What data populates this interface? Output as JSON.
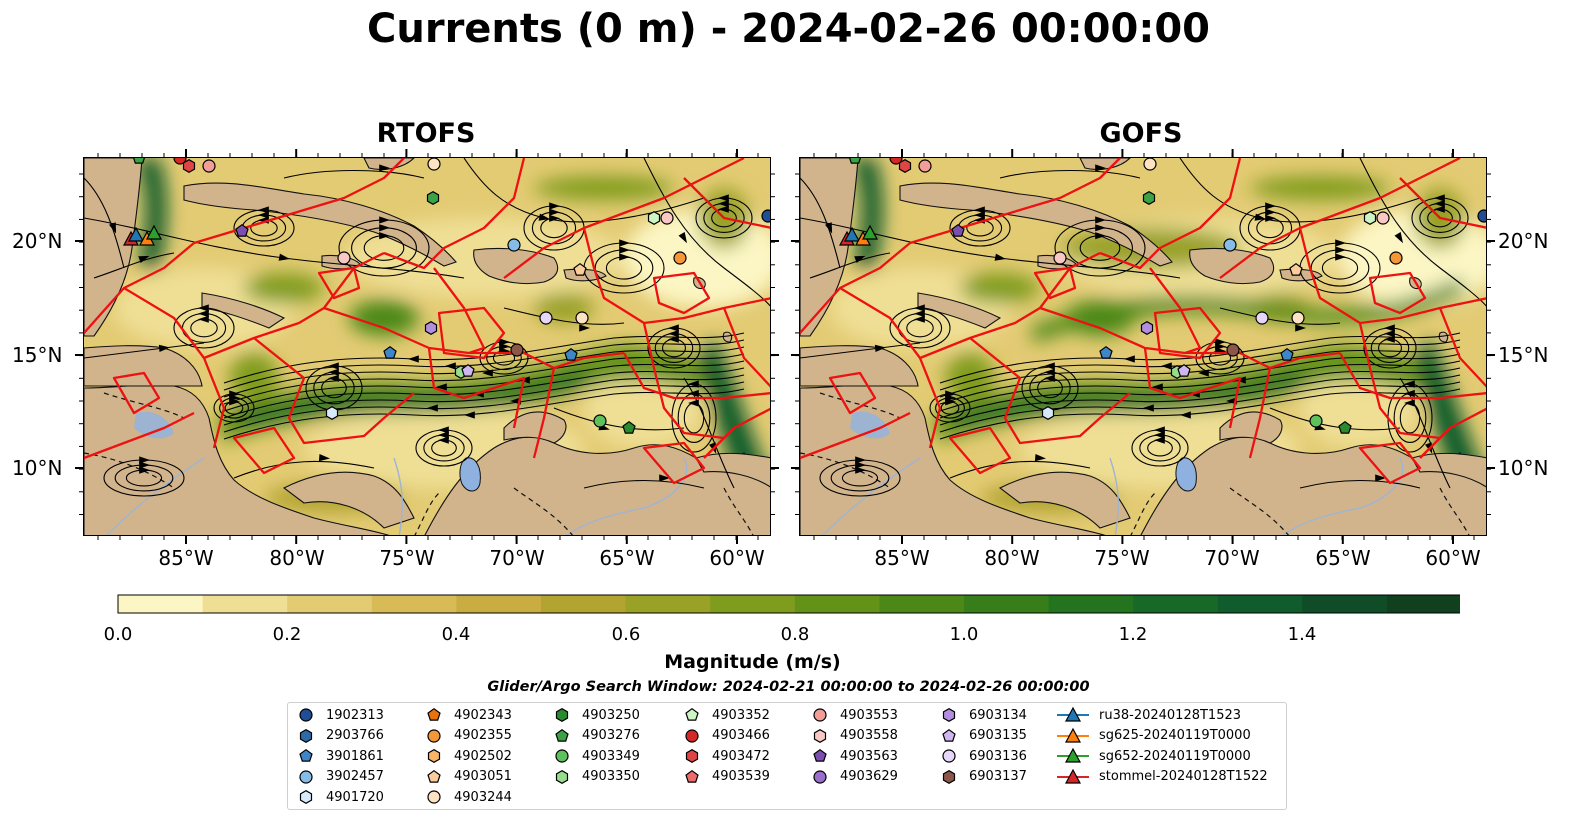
{
  "title": "Currents (0 m) - 2024-02-26 00:00:00",
  "panels": [
    {
      "id": "rtofs",
      "title": "RTOFS"
    },
    {
      "id": "gofs",
      "title": "GOFS"
    }
  ],
  "lat_ticks": [
    "20°N",
    "15°N",
    "10°N"
  ],
  "lon_ticks": [
    "85°W",
    "80°W",
    "75°W",
    "70°W",
    "65°W",
    "60°W"
  ],
  "colorbar": {
    "label": "Magnitude (m/s)",
    "ticks": [
      "0.0",
      "0.2",
      "0.4",
      "0.6",
      "0.8",
      "1.0",
      "1.2",
      "1.4"
    ],
    "colors": [
      "#fcf6c4",
      "#efdf95",
      "#e3cb74",
      "#d8bb56",
      "#c9ad42",
      "#b3a432",
      "#99a126",
      "#809c1e",
      "#649219",
      "#4c8818",
      "#377e1b",
      "#23731f",
      "#166927",
      "#105c2c",
      "#0f4c27",
      "#11401f",
      "#123318",
      "#122a12"
    ]
  },
  "map_colors": {
    "land": "#d2b48c",
    "lake": "#8fb1e0",
    "boundary": "#ee1111"
  },
  "search_window": "Glider/Argo Search Window: 2024-02-21 00:00:00 to 2024-02-26 00:00:00",
  "legend": {
    "columns": [
      [
        {
          "label": "1902313",
          "marker": "circle",
          "color": "#1f4e95"
        },
        {
          "label": "2903766",
          "marker": "hexagon",
          "color": "#2e6aa8"
        },
        {
          "label": "3901861",
          "marker": "pentagon",
          "color": "#3f86c8"
        },
        {
          "label": "3902457",
          "marker": "circle",
          "color": "#86bde8"
        },
        {
          "label": "4901720",
          "marker": "hexagon",
          "color": "#d6eafb"
        }
      ],
      [
        {
          "label": "4902343",
          "marker": "pentagon",
          "color": "#e8720c"
        },
        {
          "label": "4902355",
          "marker": "circle",
          "color": "#f39738"
        },
        {
          "label": "4902502",
          "marker": "hexagon",
          "color": "#f8b567"
        },
        {
          "label": "4903051",
          "marker": "pentagon",
          "color": "#fbcd9b"
        },
        {
          "label": "4903244",
          "marker": "circle",
          "color": "#fde3c4"
        }
      ],
      [
        {
          "label": "4903250",
          "marker": "hexagon",
          "color": "#2a8a2e"
        },
        {
          "label": "4903276",
          "marker": "pentagon",
          "color": "#3ba245"
        },
        {
          "label": "4903349",
          "marker": "circle",
          "color": "#5fc15c"
        },
        {
          "label": "4903350",
          "marker": "hexagon",
          "color": "#97dd8d"
        }
      ],
      [
        {
          "label": "4903352",
          "marker": "pentagon",
          "color": "#cdf4c4"
        },
        {
          "label": "4903466",
          "marker": "circle",
          "color": "#d62728"
        },
        {
          "label": "4903472",
          "marker": "hexagon",
          "color": "#e04546"
        },
        {
          "label": "4903539",
          "marker": "pentagon",
          "color": "#ec6b6b"
        }
      ],
      [
        {
          "label": "4903553",
          "marker": "circle",
          "color": "#f29d98"
        },
        {
          "label": "4903558",
          "marker": "hexagon",
          "color": "#f9c8c4"
        },
        {
          "label": "4903563",
          "marker": "pentagon",
          "color": "#7a4fb0"
        },
        {
          "label": "4903629",
          "marker": "circle",
          "color": "#9a6fcc"
        }
      ],
      [
        {
          "label": "6903134",
          "marker": "hexagon",
          "color": "#b38ee0"
        },
        {
          "label": "6903135",
          "marker": "pentagon",
          "color": "#cfb6f0"
        },
        {
          "label": "6903136",
          "marker": "circle",
          "color": "#e6d6f8"
        },
        {
          "label": "6903137",
          "marker": "hexagon",
          "color": "#8c564b"
        }
      ],
      [
        {
          "label": "ru38-20240128T1523",
          "marker": "triangle-line",
          "color": "#1f77b4"
        },
        {
          "label": "sg625-20240119T0000",
          "marker": "triangle-line",
          "color": "#ff7f0e"
        },
        {
          "label": "sg652-20240119T0000",
          "marker": "triangle-line",
          "color": "#2ca02c"
        },
        {
          "label": "stommel-20240128T1522",
          "marker": "triangle-line",
          "color": "#d62728"
        }
      ]
    ]
  }
}
